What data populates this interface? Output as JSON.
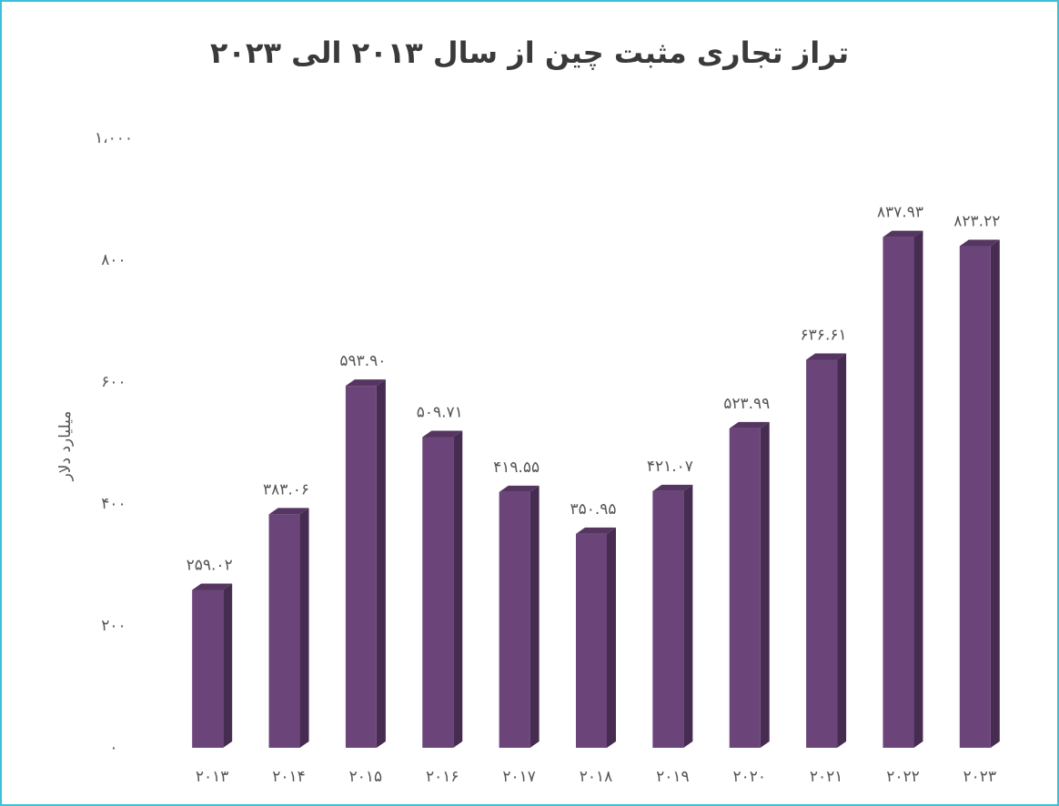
{
  "chart_data": {
    "type": "bar",
    "title": "تراز تجاری مثبت چین از سال ۲۰۱۳ الی ۲۰۲۳",
    "y_label": "میلیارد دلار",
    "categories": [
      "۲۰۱۳",
      "۲۰۱۴",
      "۲۰۱۵",
      "۲۰۱۶",
      "۲۰۱۷",
      "۲۰۱۸",
      "۲۰۱۹",
      "۲۰۲۰",
      "۲۰۲۱",
      "۲۰۲۲",
      "۲۰۲۳"
    ],
    "values": [
      259.02,
      383.06,
      593.9,
      509.71,
      419.55,
      350.95,
      421.07,
      523.99,
      636.61,
      837.93,
      823.22
    ],
    "value_labels": [
      "۲۵۹.۰۲",
      "۳۸۳.۰۶",
      "۵۹۳.۹۰",
      "۵۰۹.۷۱",
      "۴۱۹.۵۵",
      "۳۵۰.۹۵",
      "۴۲۱.۰۷",
      "۵۲۳.۹۹",
      "۶۳۶.۶۱",
      "۸۳۷.۹۳",
      "۸۲۳.۲۲"
    ],
    "color": "#6b4579",
    "ylim": [
      0,
      1000
    ],
    "yticks": [
      {
        "value": 0,
        "label": "۰"
      },
      {
        "value": 200,
        "label": "۲۰۰"
      },
      {
        "value": 400,
        "label": "۴۰۰"
      },
      {
        "value": 600,
        "label": "۶۰۰"
      },
      {
        "value": 800,
        "label": "۸۰۰"
      },
      {
        "value": 1000,
        "label": "۱،۰۰۰"
      }
    ],
    "grid": false
  }
}
